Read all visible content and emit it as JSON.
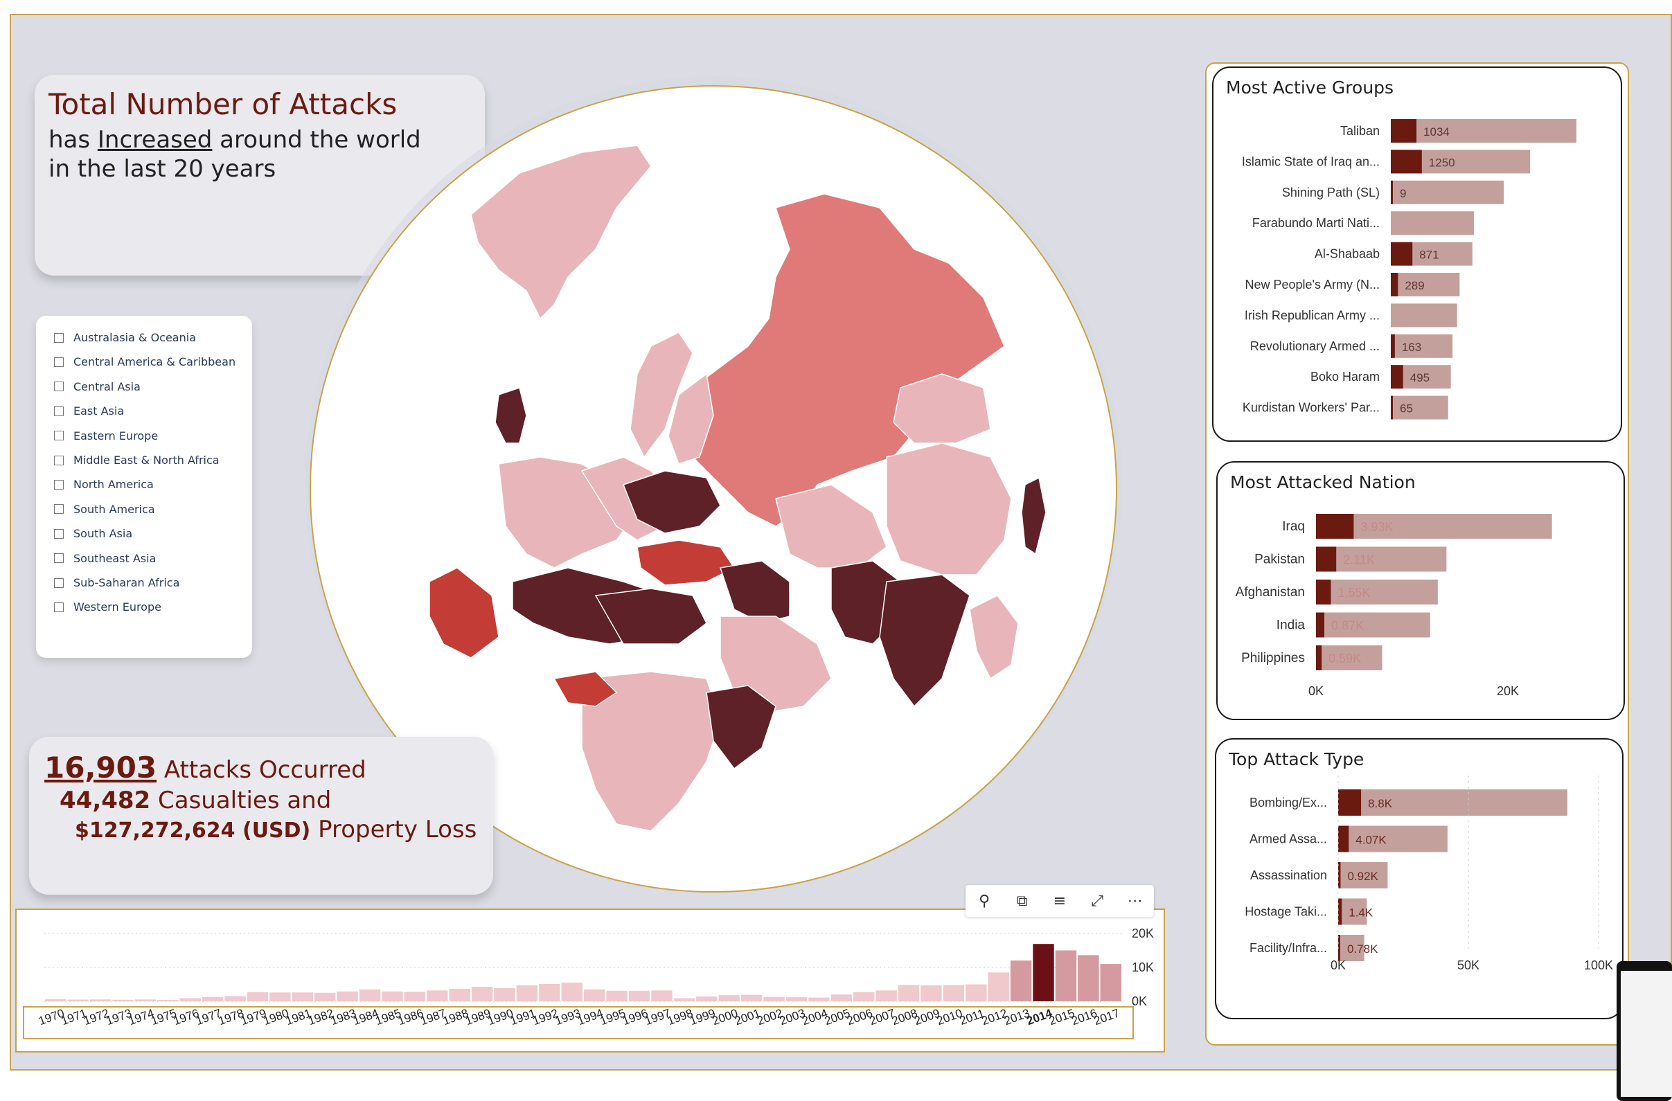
{
  "headline": {
    "title": "Total Number of Attacks",
    "line2_prefix": "has ",
    "line2_emph": "Increased",
    "line2_suffix": " around the world",
    "line3": "in the last 20 years"
  },
  "regions": [
    "Australasia & Oceania",
    "Central America & Caribbean",
    "Central Asia",
    "East Asia",
    "Eastern Europe",
    "Middle East & North Africa",
    "North America",
    "South America",
    "South Asia",
    "Southeast Asia",
    "Sub-Saharan Africa",
    "Western Europe"
  ],
  "kpi": {
    "attacks": "16,903",
    "attacks_label": " Attacks Occurred",
    "casualties": "44,482",
    "casualties_label": " Casualties and",
    "loss": "$127,272,624 (USD)",
    "loss_label": " Property Loss"
  },
  "colors": {
    "dark": "#6b1a10",
    "bar_light": "#c4a09c",
    "map_light": "#e8b6ba",
    "map_mid": "#e07a78",
    "map_dark": "#5e2128",
    "map_red": "#c43c36",
    "timeline_bar": "#f0c9cc",
    "timeline_selected": "#6b1014"
  },
  "toolbar": {
    "icons": [
      "pin-icon",
      "copy-icon",
      "filter-icon",
      "focus-mode-icon",
      "more-options-icon"
    ]
  },
  "chart_data": [
    {
      "id": "attacks-by-year",
      "type": "bar",
      "categories": [
        "1970",
        "1971",
        "1972",
        "1973",
        "1974",
        "1975",
        "1976",
        "1977",
        "1978",
        "1979",
        "1980",
        "1981",
        "1982",
        "1983",
        "1984",
        "1985",
        "1986",
        "1987",
        "1988",
        "1989",
        "1990",
        "1991",
        "1992",
        "1993",
        "1994",
        "1995",
        "1996",
        "1997",
        "1998",
        "1999",
        "2000",
        "2001",
        "2002",
        "2003",
        "2004",
        "2005",
        "2006",
        "2007",
        "2008",
        "2009",
        "2010",
        "2011",
        "2012",
        "2013",
        "2014",
        "2015",
        "2016",
        "2017"
      ],
      "values": [
        600,
        500,
        550,
        450,
        550,
        400,
        900,
        1300,
        1500,
        2700,
        2600,
        2600,
        2500,
        2900,
        3500,
        2900,
        2800,
        3200,
        3700,
        4300,
        3900,
        4700,
        5100,
        5500,
        3500,
        3100,
        3100,
        3200,
        900,
        1400,
        1800,
        1900,
        1300,
        1200,
        1100,
        2000,
        2700,
        3200,
        4800,
        4700,
        4800,
        5000,
        8500,
        12000,
        16900,
        15000,
        13600,
        11000
      ],
      "selected": "2014",
      "ylim": [
        0,
        20000
      ],
      "yticks": [
        "0K",
        "10K",
        "20K"
      ]
    },
    {
      "id": "most-active-groups",
      "type": "bar",
      "title": "Most Active Groups",
      "categories": [
        "Taliban",
        "Islamic State of Iraq an...",
        "Shining Path (SL)",
        "Farabundo Marti Nati...",
        "Al-Shabaab",
        "New People's Army (N...",
        "Irish Republican Army ...",
        "Revolutionary Armed ...",
        "Boko Haram",
        "Kurdistan Workers' Par..."
      ],
      "values": [
        1034,
        1250,
        9,
        null,
        871,
        289,
        null,
        163,
        495,
        65
      ],
      "labels": [
        "1034",
        "1250",
        "9",
        "",
        "871",
        "289",
        "",
        "163",
        "495",
        "65"
      ],
      "totals": [
        7478,
        5613,
        4555,
        3351,
        3288,
        2772,
        2671,
        2487,
        2418,
        2310
      ]
    },
    {
      "id": "most-attacked-nation",
      "type": "bar",
      "title": "Most Attacked Nation",
      "categories": [
        "Iraq",
        "Pakistan",
        "Afghanistan",
        "India",
        "Philippines"
      ],
      "values": [
        3930,
        2110,
        1550,
        870,
        590
      ],
      "labels": [
        "3.93K",
        "2.11K",
        "1.55K",
        "0.87K",
        "0.59K"
      ],
      "totals": [
        24600,
        13600,
        12700,
        11900,
        6900
      ],
      "xlim": [
        0,
        30000
      ],
      "xticks": [
        "0K",
        "20K"
      ]
    },
    {
      "id": "top-attack-type",
      "type": "bar",
      "title": "Top Attack Type",
      "categories": [
        "Bombing/Ex...",
        "Armed Assa...",
        "Assassination",
        "Hostage Taki...",
        "Facility/Infra..."
      ],
      "values": [
        8800,
        4070,
        920,
        1400,
        780
      ],
      "labels": [
        "8.8K",
        "4.07K",
        "0.92K",
        "1.4K",
        "0.78K"
      ],
      "totals": [
        88000,
        42000,
        19000,
        11000,
        10000
      ],
      "xlim": [
        0,
        100000
      ],
      "xticks": [
        "0K",
        "50K",
        "100K"
      ]
    }
  ]
}
